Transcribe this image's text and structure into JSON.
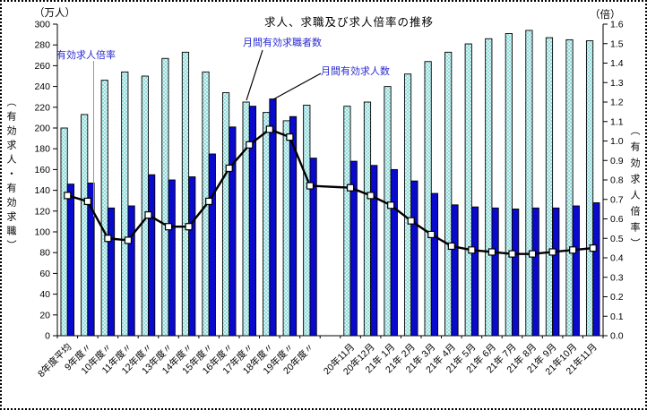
{
  "chart_data": {
    "type": "bar+line",
    "title": "求人、求職及び求人倍率の推移",
    "categories": [
      "8年度平均",
      "9年度〃",
      "10年度〃",
      "11年度〃",
      "12年度〃",
      "13年度〃",
      "14年度〃",
      "15年度〃",
      "16年度〃",
      "17年度〃",
      "18年度〃",
      "19年度〃",
      "20年度〃",
      "20年11月",
      "20年12月",
      "21年 1月",
      "21年 2月",
      "21年 3月",
      "21年 4月",
      "21年 5月",
      "21年 6月",
      "21年 7月",
      "21年 8月",
      "21年 9月",
      "21年10月",
      "21年11月"
    ],
    "gap_after_index": 12,
    "grid": false,
    "legend_position": "annotations-on-plot",
    "series": [
      {
        "name": "月間有効求職者数",
        "type": "bar",
        "axis": "left",
        "color": "#b7e8e8",
        "values": [
          200,
          213,
          246,
          254,
          250,
          267,
          273,
          254,
          234,
          225,
          215,
          207,
          222,
          221,
          225,
          240,
          252,
          264,
          273,
          281,
          286,
          291,
          294,
          287,
          285,
          284
        ]
      },
      {
        "name": "月間有効求人数",
        "type": "bar",
        "axis": "left",
        "color": "#0a0ace",
        "values": [
          146,
          147,
          123,
          125,
          155,
          150,
          153,
          175,
          201,
          221,
          228,
          211,
          171,
          168,
          164,
          160,
          149,
          137,
          126,
          124,
          123,
          122,
          123,
          123,
          125,
          128
        ]
      },
      {
        "name": "有効求人倍率",
        "type": "line",
        "axis": "right",
        "color": "#000000",
        "marker": "white-square",
        "values": [
          0.72,
          0.69,
          0.5,
          0.49,
          0.62,
          0.56,
          0.56,
          0.69,
          0.86,
          0.98,
          1.06,
          1.02,
          0.77,
          0.76,
          0.72,
          0.67,
          0.59,
          0.52,
          0.46,
          0.44,
          0.43,
          0.42,
          0.42,
          0.43,
          0.44,
          0.45
        ]
      }
    ],
    "left_axis": {
      "unit": "（万人）",
      "label": "（有効求人・有効求職）",
      "min": 0,
      "max": 300,
      "step": 20
    },
    "right_axis": {
      "unit": "（倍）",
      "label": "（有効求人倍率）",
      "min": 0,
      "max": 1.6,
      "step": 0.1
    },
    "colors": {
      "seekers_bar": "#b7e8e8",
      "openings_bar": "#0a0ace",
      "ratio_line": "#000000",
      "annotation_text": "#2a2ad4",
      "axis": "#000000"
    }
  }
}
